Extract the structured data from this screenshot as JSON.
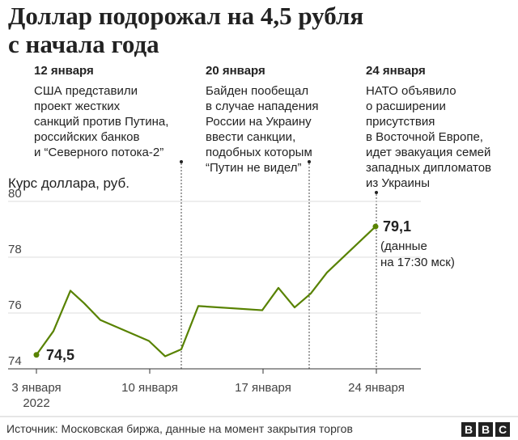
{
  "title": [
    "Доллар подорожал на 4,5 рубля",
    "с начала года"
  ],
  "ylabel": "Курс доллара, руб.",
  "source": "Источник: Московская биржа, данные на момент закрытия торгов",
  "logo": "BBC",
  "annotations": [
    {
      "date": "12 января",
      "lines": [
        "США представили",
        "проект жестких",
        "санкций против Путина,",
        "российских банков",
        "и “Северного потока-2”"
      ],
      "x": 12
    },
    {
      "date": "20 января",
      "lines": [
        "Байден пообещал",
        "в случае нападения",
        "России на Украину",
        "ввести санкции,",
        "подобных которым",
        "“Путин не видел”"
      ],
      "x": 20
    },
    {
      "date": "24 января",
      "lines": [
        "НАТО объявило",
        "о расширении",
        "присутствия",
        "в Восточной Европе,",
        "идет эвакуация семей",
        "западных дипломатов",
        "из Украины"
      ],
      "x": 24
    }
  ],
  "start_label": "74,5",
  "end_label": "79,1",
  "end_note": [
    "(данные",
    "на 17:30 мск)"
  ],
  "colors": {
    "line": "#588200",
    "text": "#222222",
    "grid": "#dddddd"
  },
  "chart_data": {
    "type": "line",
    "title": "Доллар подорожал на 4,5 рубля с начала года",
    "ylabel": "Курс доллара, руб.",
    "ylim": [
      74,
      81
    ],
    "yticks": [
      74,
      76,
      78,
      80
    ],
    "xlim": [
      3,
      26
    ],
    "xticks": [
      {
        "x": 3,
        "label": [
          "3 января",
          "2022"
        ]
      },
      {
        "x": 10,
        "label": [
          "10 января"
        ]
      },
      {
        "x": 17,
        "label": [
          "17 января"
        ]
      },
      {
        "x": 24,
        "label": [
          "24 января"
        ]
      }
    ],
    "grid": true,
    "series": [
      {
        "x": [
          3,
          4,
          5,
          6,
          7,
          10,
          11,
          12,
          13,
          17,
          18,
          19,
          20,
          21,
          24
        ],
        "values": [
          74.5,
          75.35,
          76.8,
          76.35,
          75.75,
          75.0,
          74.45,
          74.7,
          76.25,
          76.1,
          76.9,
          76.2,
          76.7,
          77.45,
          79.1
        ]
      }
    ]
  }
}
